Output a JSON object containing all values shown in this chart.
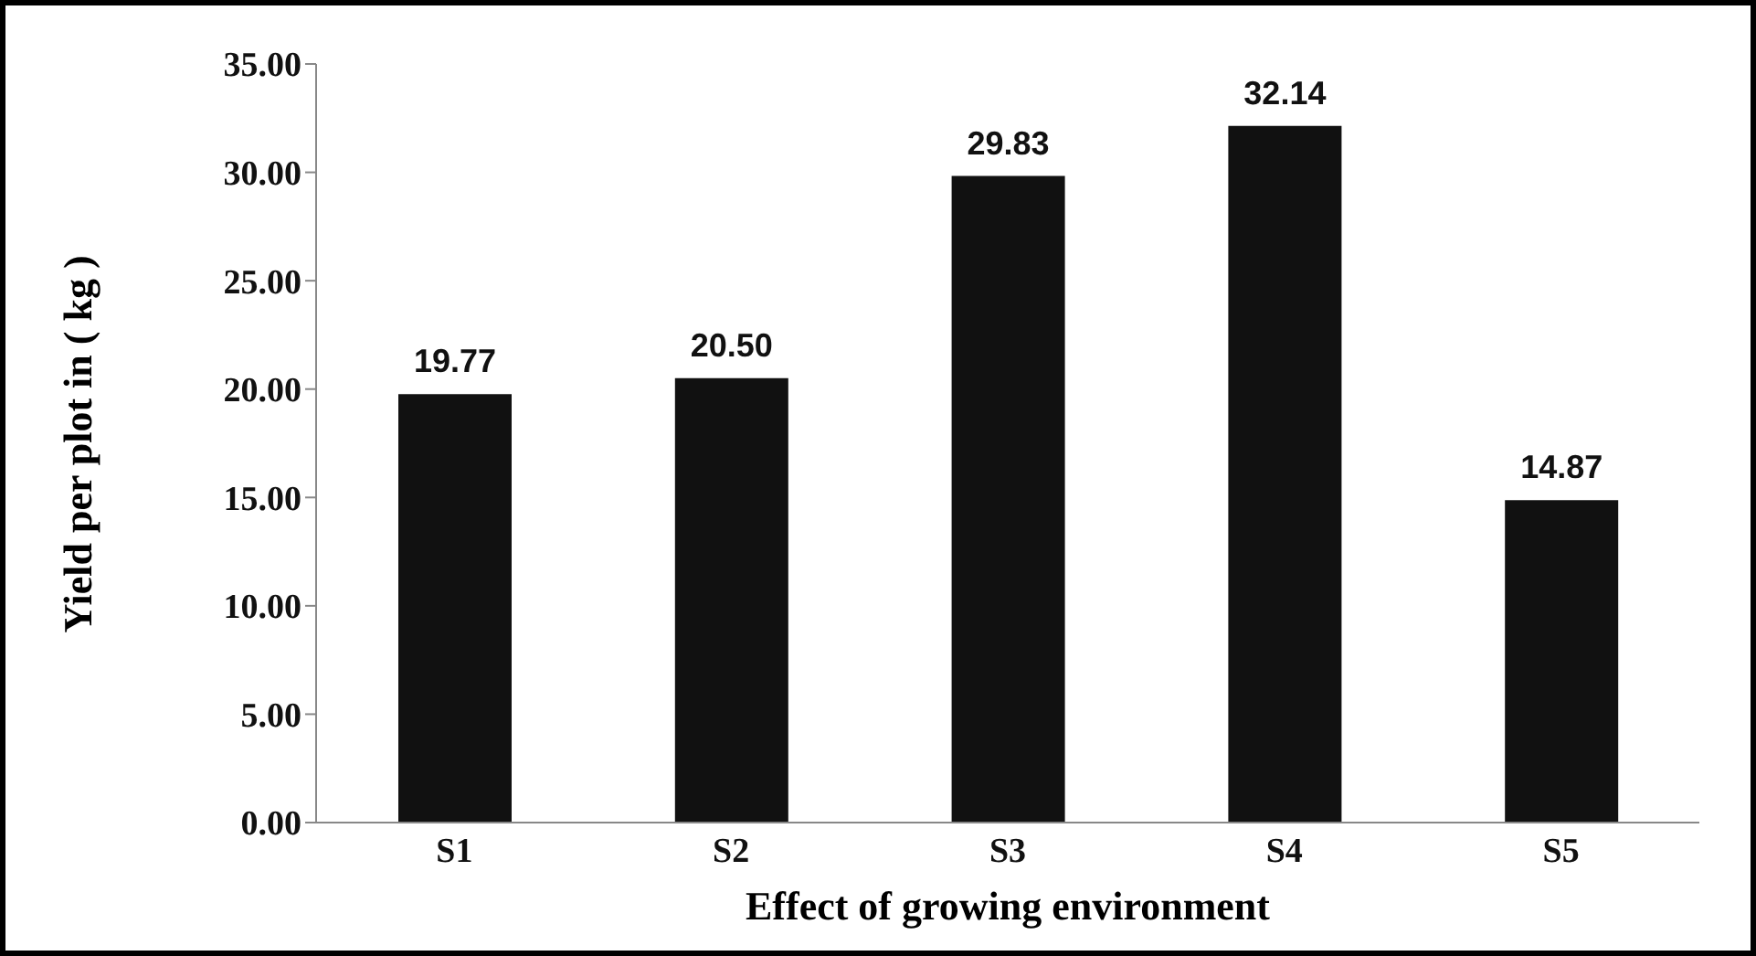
{
  "chart_data": {
    "type": "bar",
    "xlabel": "Effect of growing environment",
    "ylabel": "Yield per plot in ( kg )",
    "categories": [
      "S1",
      "S2",
      "S3",
      "S4",
      "S5"
    ],
    "values": [
      19.77,
      20.5,
      29.83,
      32.14,
      14.87
    ],
    "value_labels": [
      "19.77",
      "20.50",
      "29.83",
      "32.14",
      "14.87"
    ],
    "color": "#111111",
    "ylim": [
      0,
      35
    ],
    "yticks": [
      {
        "value": 0,
        "label": "0.00"
      },
      {
        "value": 5,
        "label": "5.00"
      },
      {
        "value": 10,
        "label": "10.00"
      },
      {
        "value": 15,
        "label": "15.00"
      },
      {
        "value": 20,
        "label": "20.00"
      },
      {
        "value": 25,
        "label": "25.00"
      },
      {
        "value": 30,
        "label": "30.00"
      },
      {
        "value": 35,
        "label": "35.00"
      }
    ],
    "grid": false
  }
}
